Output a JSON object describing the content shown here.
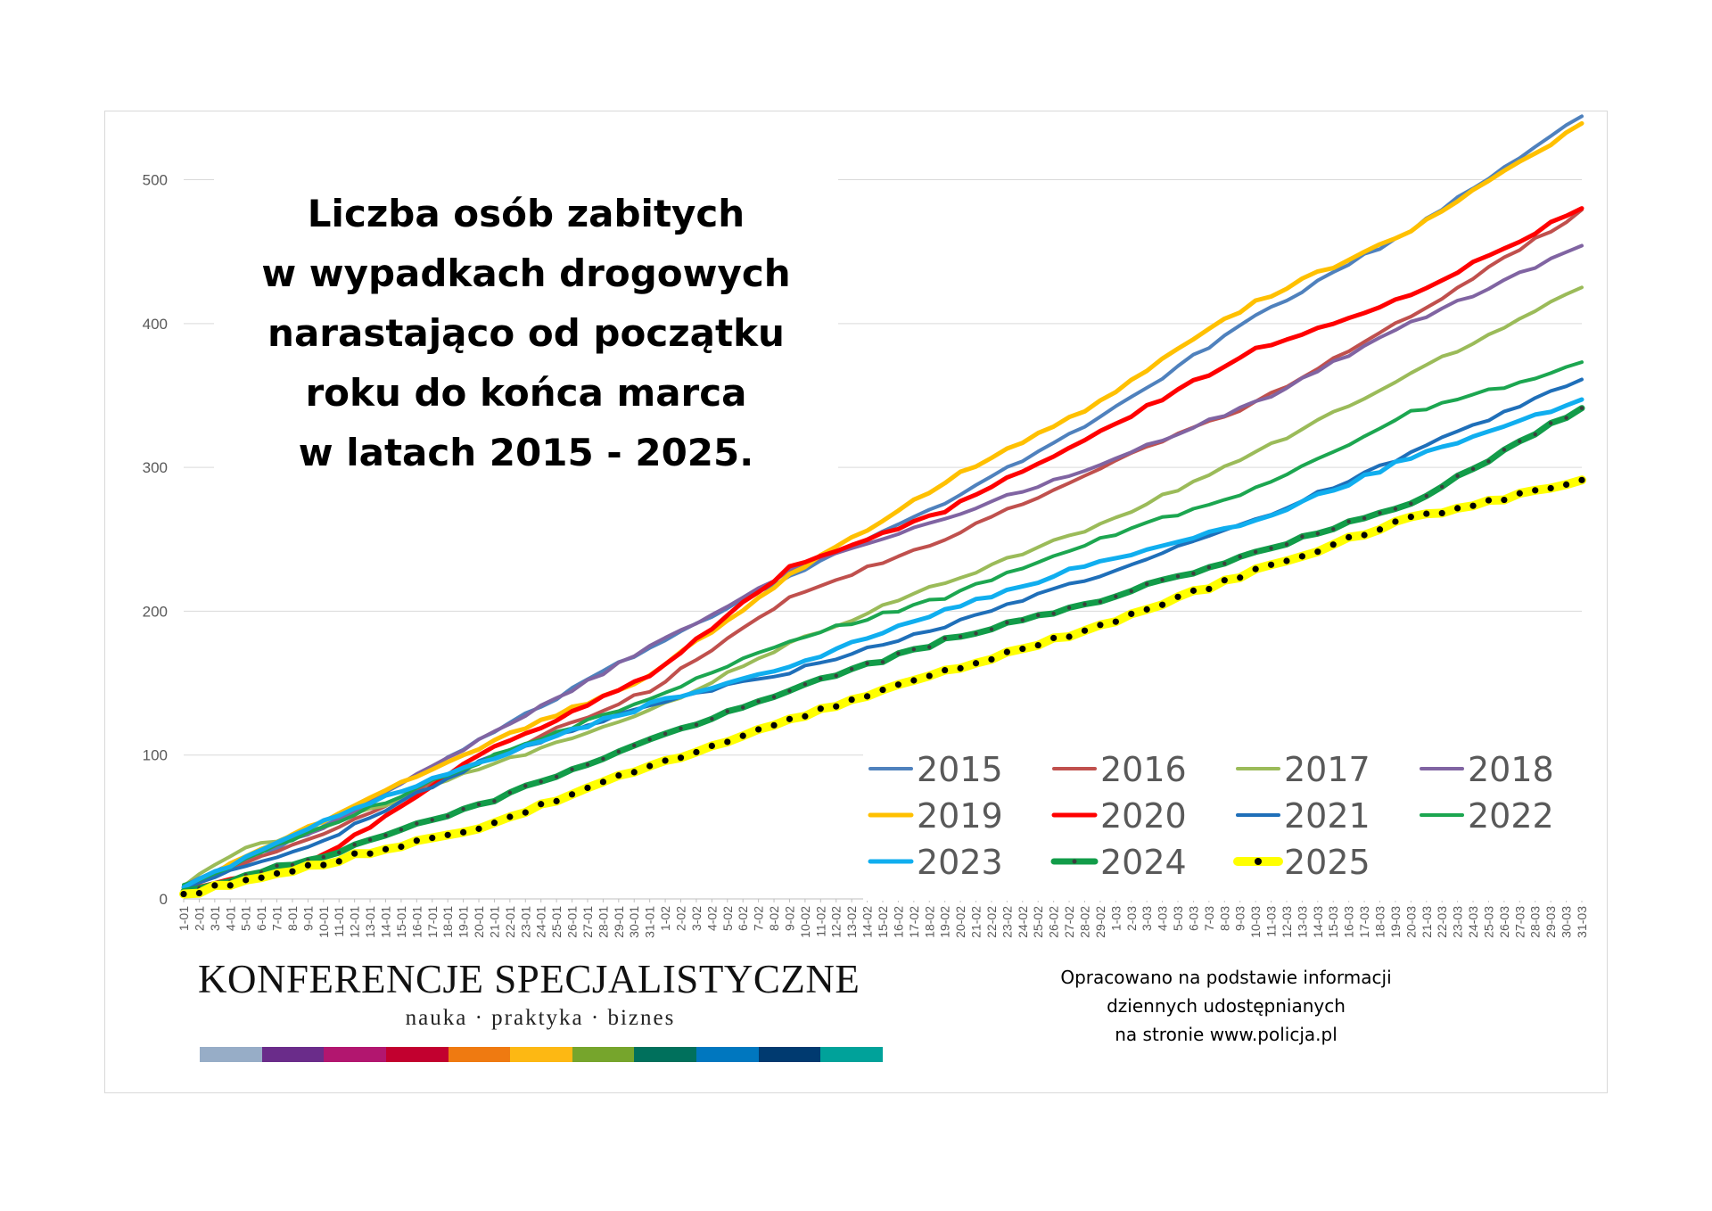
{
  "title_lines": [
    "Liczba osób zabitych",
    "w wypadkach drogowych",
    "narastająco od początku",
    "roku do końca marca",
    "w latach 2015 - 2025."
  ],
  "branding": {
    "name": "KONFERENCJE SPECJALISTYCZNE",
    "tagline": "nauka · praktyka · biznes",
    "stripe_colors": [
      "#97adc7",
      "#6a2c8a",
      "#b2166f",
      "#c2002f",
      "#ef7a11",
      "#fdb813",
      "#76a52c",
      "#00705c",
      "#0077bf",
      "#003a70",
      "#00a29a"
    ]
  },
  "source_lines": [
    "Opracowano na podstawie informacji",
    "dziennych udostępnianych",
    "na stronie www.policja.pl"
  ],
  "chart_data": {
    "type": "line",
    "x_labels": [
      "1-01",
      "2-01",
      "3-01",
      "4-01",
      "5-01",
      "6-01",
      "7-01",
      "8-01",
      "9-01",
      "10-01",
      "11-01",
      "12-01",
      "13-01",
      "14-01",
      "15-01",
      "16-01",
      "17-01",
      "18-01",
      "19-01",
      "20-01",
      "21-01",
      "22-01",
      "23-01",
      "24-01",
      "25-01",
      "26-01",
      "27-01",
      "28-01",
      "29-01",
      "30-01",
      "31-01",
      "1-02",
      "2-02",
      "3-02",
      "4-02",
      "5-02",
      "6-02",
      "7-02",
      "8-02",
      "9-02",
      "10-02",
      "11-02",
      "12-02",
      "13-02",
      "14-02",
      "15-02",
      "16-02",
      "17-02",
      "18-02",
      "19-02",
      "20-02",
      "21-02",
      "22-02",
      "23-02",
      "24-02",
      "25-02",
      "26-02",
      "27-02",
      "28-02",
      "29-02",
      "1-03",
      "2-03",
      "3-03",
      "4-03",
      "5-03",
      "6-03",
      "7-03",
      "8-03",
      "9-03",
      "10-03",
      "11-03",
      "12-03",
      "13-03",
      "14-03",
      "15-03",
      "16-03",
      "17-03",
      "18-03",
      "19-03",
      "20-03",
      "21-03",
      "22-03",
      "23-03",
      "24-03",
      "25-03",
      "26-03",
      "27-03",
      "28-03",
      "29-03",
      "30-03",
      "31-03"
    ],
    "x_range": [
      1,
      91
    ],
    "ylim": [
      0,
      540
    ],
    "y_ticks": [
      0,
      100,
      200,
      300,
      400,
      500
    ],
    "grid": true,
    "legend_position": "bottom-right",
    "series": [
      {
        "name": "2015",
        "color": "#4f81bd",
        "width": 4,
        "anchors": [
          [
            1,
            8
          ],
          [
            10,
            50
          ],
          [
            20,
            110
          ],
          [
            31,
            175
          ],
          [
            40,
            225
          ],
          [
            50,
            275
          ],
          [
            60,
            335
          ],
          [
            70,
            405
          ],
          [
            80,
            465
          ],
          [
            91,
            545
          ]
        ]
      },
      {
        "name": "2016",
        "color": "#c0504d",
        "width": 4,
        "anchors": [
          [
            1,
            8
          ],
          [
            10,
            45
          ],
          [
            20,
            95
          ],
          [
            31,
            145
          ],
          [
            40,
            210
          ],
          [
            50,
            250
          ],
          [
            60,
            300
          ],
          [
            70,
            345
          ],
          [
            80,
            405
          ],
          [
            91,
            478
          ]
        ]
      },
      {
        "name": "2017",
        "color": "#9bbb59",
        "width": 4,
        "anchors": [
          [
            1,
            10
          ],
          [
            5,
            35
          ],
          [
            10,
            50
          ],
          [
            20,
            90
          ],
          [
            31,
            130
          ],
          [
            40,
            178
          ],
          [
            50,
            220
          ],
          [
            60,
            260
          ],
          [
            70,
            310
          ],
          [
            80,
            365
          ],
          [
            91,
            425
          ]
        ]
      },
      {
        "name": "2018",
        "color": "#8064a2",
        "width": 4,
        "anchors": [
          [
            1,
            10
          ],
          [
            10,
            50
          ],
          [
            20,
            110
          ],
          [
            31,
            175
          ],
          [
            40,
            228
          ],
          [
            50,
            265
          ],
          [
            60,
            302
          ],
          [
            70,
            345
          ],
          [
            80,
            400
          ],
          [
            91,
            455
          ]
        ]
      },
      {
        "name": "2019",
        "color": "#ffc000",
        "width": 5,
        "anchors": [
          [
            1,
            8
          ],
          [
            10,
            55
          ],
          [
            20,
            105
          ],
          [
            31,
            155
          ],
          [
            40,
            225
          ],
          [
            50,
            290
          ],
          [
            60,
            345
          ],
          [
            66,
            390
          ],
          [
            70,
            415
          ],
          [
            80,
            465
          ],
          [
            91,
            538
          ]
        ]
      },
      {
        "name": "2020",
        "color": "#ff0000",
        "width": 5,
        "anchors": [
          [
            1,
            5
          ],
          [
            5,
            15
          ],
          [
            10,
            30
          ],
          [
            20,
            100
          ],
          [
            31,
            155
          ],
          [
            40,
            230
          ],
          [
            50,
            270
          ],
          [
            60,
            325
          ],
          [
            70,
            382
          ],
          [
            80,
            420
          ],
          [
            91,
            480
          ]
        ]
      },
      {
        "name": "2021",
        "color": "#1f6fb9",
        "width": 4,
        "anchors": [
          [
            1,
            8
          ],
          [
            10,
            40
          ],
          [
            20,
            95
          ],
          [
            31,
            135
          ],
          [
            40,
            158
          ],
          [
            50,
            190
          ],
          [
            60,
            225
          ],
          [
            70,
            263
          ],
          [
            80,
            310
          ],
          [
            91,
            362
          ]
        ]
      },
      {
        "name": "2022",
        "color": "#1ca650",
        "width": 4,
        "anchors": [
          [
            1,
            10
          ],
          [
            10,
            50
          ],
          [
            20,
            95
          ],
          [
            31,
            140
          ],
          [
            40,
            180
          ],
          [
            50,
            210
          ],
          [
            60,
            250
          ],
          [
            70,
            285
          ],
          [
            80,
            338
          ],
          [
            91,
            372
          ]
        ]
      },
      {
        "name": "2023",
        "color": "#10aeef",
        "width": 5,
        "anchors": [
          [
            1,
            8
          ],
          [
            10,
            55
          ],
          [
            20,
            95
          ],
          [
            31,
            135
          ],
          [
            40,
            162
          ],
          [
            50,
            200
          ],
          [
            60,
            235
          ],
          [
            70,
            262
          ],
          [
            80,
            307
          ],
          [
            91,
            347
          ]
        ]
      },
      {
        "name": "2024",
        "color": "#129c49",
        "width": 7,
        "dotted": true,
        "dot_color": "#3d3d3d",
        "anchors": [
          [
            1,
            5
          ],
          [
            10,
            30
          ],
          [
            20,
            65
          ],
          [
            31,
            110
          ],
          [
            40,
            145
          ],
          [
            50,
            180
          ],
          [
            60,
            208
          ],
          [
            70,
            240
          ],
          [
            80,
            275
          ],
          [
            91,
            342
          ]
        ]
      },
      {
        "name": "2025",
        "color": "#ffff00",
        "width": 10,
        "dotted": true,
        "dot_color": "#000000",
        "anchors": [
          [
            1,
            3
          ],
          [
            10,
            25
          ],
          [
            20,
            50
          ],
          [
            31,
            92
          ],
          [
            40,
            125
          ],
          [
            50,
            158
          ],
          [
            60,
            190
          ],
          [
            70,
            228
          ],
          [
            80,
            265
          ],
          [
            91,
            290
          ]
        ]
      }
    ]
  }
}
